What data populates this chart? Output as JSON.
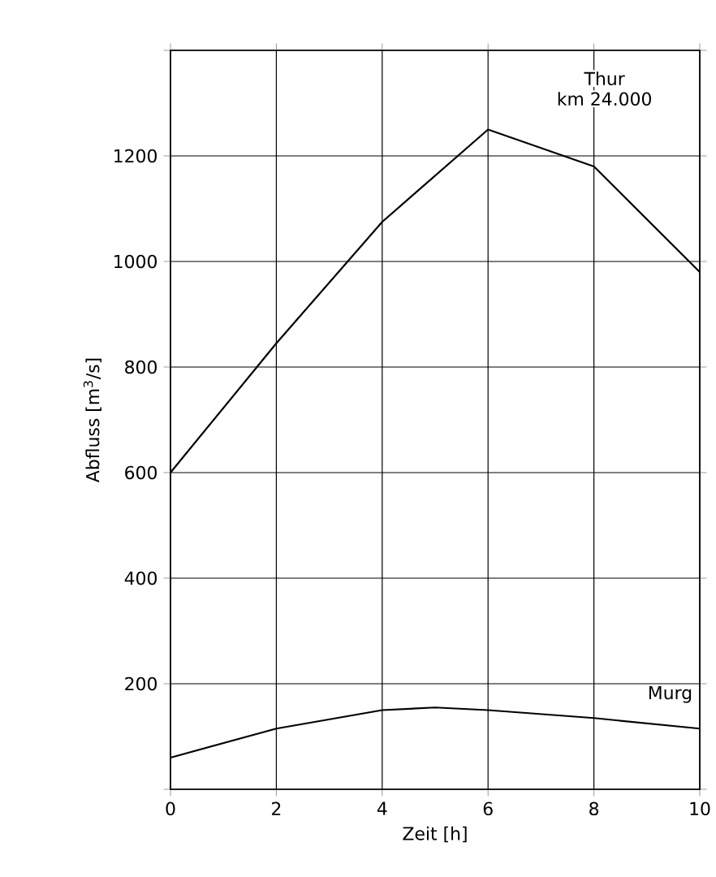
{
  "chart_data": {
    "type": "line",
    "xlabel": "Zeit [h]",
    "ylabel": "Abfluss [m$^{3}$/s]",
    "series": [
      {
        "name": "Thur",
        "color": "#000000",
        "x": [
          0,
          2,
          4,
          6,
          8,
          10
        ],
        "values": [
          600,
          845,
          1075,
          1250,
          1180,
          980
        ]
      },
      {
        "name": "Murg",
        "color": "#000000",
        "x": [
          0,
          2,
          4,
          5,
          6,
          8,
          10
        ],
        "values": [
          60,
          115,
          150,
          155,
          150,
          135,
          115
        ]
      }
    ],
    "annotations": [
      "km 24.000"
    ],
    "xlim": [
      0,
      10
    ],
    "ylim": [
      0,
      1400
    ],
    "xticks": [
      0,
      2,
      4,
      6,
      8,
      10
    ],
    "yticks": [
      {
        "value": 0,
        "label": null
      },
      200,
      400,
      600,
      800,
      1000,
      1200,
      {
        "value": 1400,
        "label": null
      }
    ],
    "grid": true,
    "legend": "top right",
    "marker": "none",
    "line_style": "solid"
  }
}
